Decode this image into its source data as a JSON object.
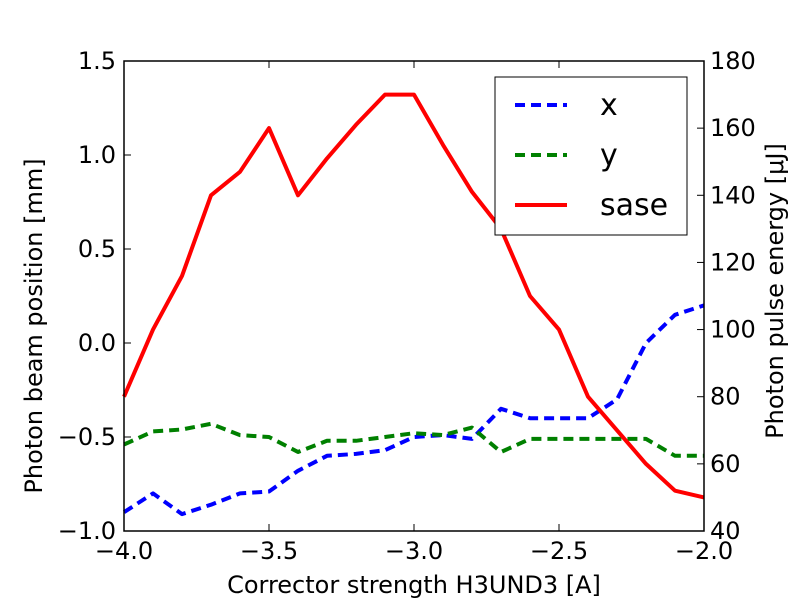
{
  "chart_data": {
    "type": "line",
    "xlabel": "Corrector strength H3UND3 [A]",
    "ylabel_left": "Photon beam position [mm]",
    "ylabel_right": "Photon pulse energy [μJ]",
    "xlim": [
      -4.0,
      -2.0
    ],
    "ylim_left": [
      -1.0,
      1.5
    ],
    "ylim_right": [
      40,
      180
    ],
    "x_ticks": [
      -4.0,
      -3.5,
      -3.0,
      -2.5,
      -2.0
    ],
    "x_tick_labels": [
      "−4.0",
      "−3.5",
      "−3.0",
      "−2.5",
      "−2.0"
    ],
    "y_left_ticks": [
      -1.0,
      -0.5,
      0.0,
      0.5,
      1.0,
      1.5
    ],
    "y_left_tick_labels": [
      "−1.0",
      "−0.5",
      "0.0",
      "0.5",
      "1.0",
      "1.5"
    ],
    "y_right_ticks": [
      40,
      60,
      80,
      100,
      120,
      140,
      160,
      180
    ],
    "y_right_tick_labels": [
      "40",
      "60",
      "80",
      "100",
      "120",
      "140",
      "160",
      "180"
    ],
    "grid": false,
    "legend_position": "top-right",
    "series": [
      {
        "name": "x",
        "axis": "left",
        "color": "#0000ff",
        "dash": "dashed",
        "x": [
          -4.0,
          -3.9,
          -3.8,
          -3.7,
          -3.6,
          -3.5,
          -3.4,
          -3.3,
          -3.2,
          -3.1,
          -3.0,
          -2.9,
          -2.8,
          -2.7,
          -2.6,
          -2.5,
          -2.4,
          -2.3,
          -2.2,
          -2.1,
          -2.0
        ],
        "y": [
          -0.9,
          -0.8,
          -0.91,
          -0.86,
          -0.8,
          -0.79,
          -0.68,
          -0.6,
          -0.59,
          -0.57,
          -0.5,
          -0.49,
          -0.51,
          -0.35,
          -0.4,
          -0.4,
          -0.4,
          -0.3,
          0.0,
          0.15,
          0.2
        ]
      },
      {
        "name": "y",
        "axis": "left",
        "color": "#008000",
        "dash": "dashed",
        "x": [
          -4.0,
          -3.9,
          -3.8,
          -3.7,
          -3.6,
          -3.5,
          -3.4,
          -3.3,
          -3.2,
          -3.1,
          -3.0,
          -2.9,
          -2.8,
          -2.7,
          -2.6,
          -2.5,
          -2.4,
          -2.3,
          -2.2,
          -2.1,
          -2.0
        ],
        "y": [
          -0.54,
          -0.47,
          -0.46,
          -0.43,
          -0.49,
          -0.5,
          -0.58,
          -0.52,
          -0.52,
          -0.5,
          -0.48,
          -0.49,
          -0.45,
          -0.58,
          -0.51,
          -0.51,
          -0.51,
          -0.51,
          -0.51,
          -0.6,
          -0.6
        ]
      },
      {
        "name": "sase",
        "axis": "right",
        "color": "#ff0000",
        "dash": "solid",
        "x": [
          -4.0,
          -3.9,
          -3.8,
          -3.7,
          -3.6,
          -3.5,
          -3.4,
          -3.3,
          -3.2,
          -3.1,
          -3.0,
          -2.9,
          -2.8,
          -2.7,
          -2.6,
          -2.5,
          -2.4,
          -2.3,
          -2.2,
          -2.1,
          -2.0
        ],
        "y": [
          80,
          100,
          116,
          140,
          147,
          160,
          140,
          151,
          161,
          170,
          170,
          155,
          141,
          130,
          110,
          100,
          80,
          70,
          60,
          52,
          50
        ]
      }
    ]
  }
}
